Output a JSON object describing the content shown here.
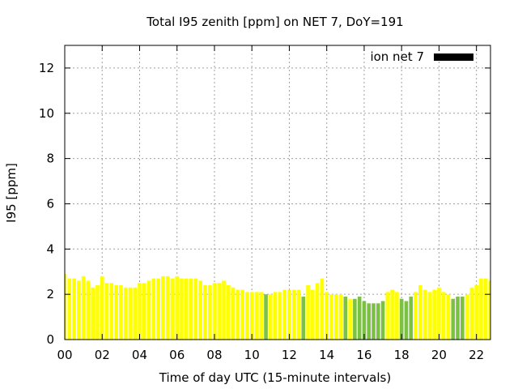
{
  "chart_data": {
    "type": "bar",
    "title": "Total I95 zenith [ppm] on NET 7, DoY=191",
    "xlabel": "Time of day UTC (15-minute intervals)",
    "ylabel": "I95 [ppm]",
    "xlim": [
      0,
      22.75
    ],
    "ylim": [
      0,
      13
    ],
    "x_ticks": [
      "00",
      "02",
      "04",
      "06",
      "08",
      "10",
      "12",
      "14",
      "16",
      "18",
      "20",
      "22"
    ],
    "y_ticks": [
      "0",
      "2",
      "4",
      "6",
      "8",
      "10",
      "12"
    ],
    "grid": true,
    "legend": {
      "label": "ion net 7",
      "position": "top-right",
      "swatch_color": "#000000"
    },
    "colors": {
      "yellow": "#ffff00",
      "green": "#7cc242"
    },
    "interval_hours": 0.25,
    "series": [
      {
        "values": [
          2.9,
          2.7,
          2.7,
          2.6,
          2.8,
          2.6,
          2.3,
          2.4,
          2.8,
          2.5,
          2.5,
          2.4,
          2.4,
          2.3,
          2.3,
          2.3,
          2.5,
          2.5,
          2.6,
          2.7,
          2.7,
          2.8,
          2.8,
          2.7,
          2.8,
          2.7,
          2.7,
          2.7,
          2.7,
          2.6,
          2.4,
          2.4,
          2.5,
          2.5,
          2.6,
          2.4,
          2.3,
          2.2,
          2.2,
          2.1,
          2.1,
          2.1,
          2.1,
          2.0,
          2.0,
          2.1,
          2.1,
          2.2,
          2.2,
          2.2,
          2.2,
          1.9,
          2.4,
          2.2,
          2.5,
          2.7,
          2.1,
          2.0,
          2.0,
          2.0,
          1.9,
          1.8,
          1.8,
          1.9,
          1.7,
          1.6,
          1.6,
          1.6,
          1.7,
          2.1,
          2.2,
          2.1,
          1.8,
          1.7,
          1.9,
          2.1,
          2.4,
          2.2,
          2.1,
          2.2,
          2.3,
          2.1,
          2.0,
          1.8,
          1.9,
          1.9,
          2.0,
          2.3,
          2.4,
          2.7,
          2.7,
          2.6,
          2.4
        ],
        "colors": [
          "yellow",
          "yellow",
          "yellow",
          "yellow",
          "yellow",
          "yellow",
          "yellow",
          "yellow",
          "yellow",
          "yellow",
          "yellow",
          "yellow",
          "yellow",
          "yellow",
          "yellow",
          "yellow",
          "yellow",
          "yellow",
          "yellow",
          "yellow",
          "yellow",
          "yellow",
          "yellow",
          "yellow",
          "yellow",
          "yellow",
          "yellow",
          "yellow",
          "yellow",
          "yellow",
          "yellow",
          "yellow",
          "yellow",
          "yellow",
          "yellow",
          "yellow",
          "yellow",
          "yellow",
          "yellow",
          "yellow",
          "yellow",
          "yellow",
          "yellow",
          "green",
          "yellow",
          "yellow",
          "yellow",
          "yellow",
          "yellow",
          "yellow",
          "yellow",
          "green",
          "yellow",
          "yellow",
          "yellow",
          "yellow",
          "yellow",
          "yellow",
          "yellow",
          "yellow",
          "green",
          "yellow",
          "green",
          "green",
          "green",
          "green",
          "green",
          "green",
          "green",
          "yellow",
          "yellow",
          "yellow",
          "green",
          "green",
          "green",
          "yellow",
          "yellow",
          "yellow",
          "yellow",
          "yellow",
          "yellow",
          "yellow",
          "yellow",
          "green",
          "green",
          "green",
          "yellow",
          "yellow",
          "yellow",
          "yellow",
          "yellow",
          "yellow",
          "yellow"
        ]
      }
    ]
  }
}
